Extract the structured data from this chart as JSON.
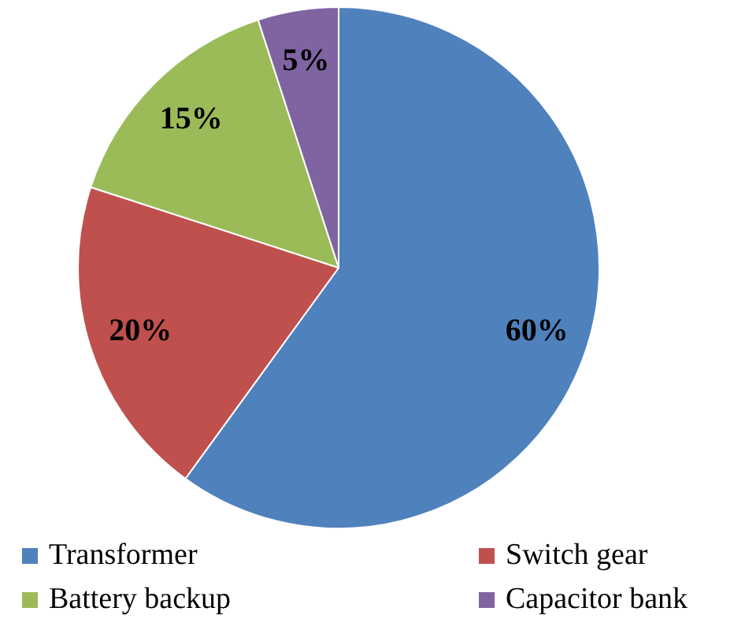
{
  "chart_data": {
    "type": "pie",
    "categories": [
      "Transformer",
      "Switch gear",
      "Battery backup",
      "Capacitor bank"
    ],
    "values": [
      60,
      20,
      15,
      5
    ],
    "colors": [
      "#4f81bd",
      "#c0504d",
      "#9bbb59",
      "#8064a2"
    ],
    "value_labels": [
      "60%",
      "20%",
      "15%",
      "5%"
    ],
    "legend": "bottom"
  }
}
